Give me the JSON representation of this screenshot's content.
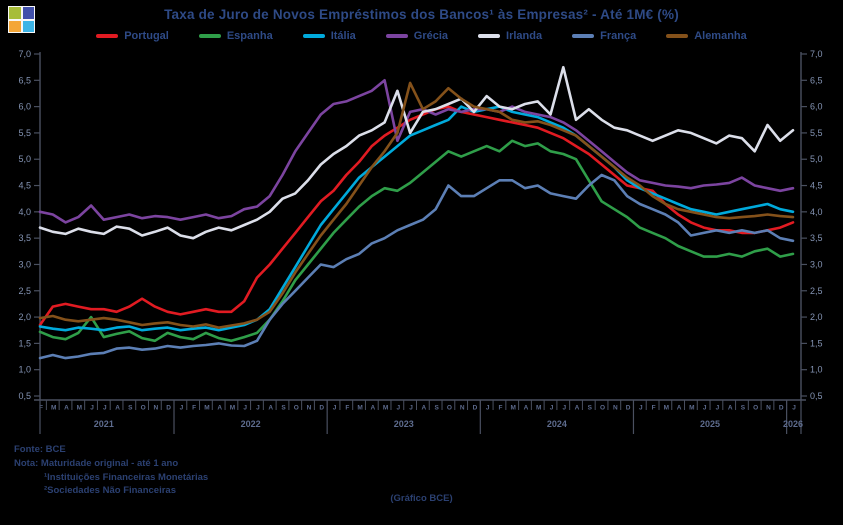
{
  "title": "Taxa de Juro de Novos Empréstimos dos Bancos¹ às Empresas² - Até 1M€ (%)",
  "logo": {
    "name": "bpstat-logo",
    "colors": {
      "top_left": "#a7bd38",
      "top_right": "#4150ab",
      "bottom_left": "#f4a637",
      "bottom_right": "#3cb4e6",
      "gap": "#f7f7f7"
    }
  },
  "footer": {
    "source": "Fonte: BCE",
    "note": "Nota: Maturidade original - até 1 ano",
    "footnote1": "¹Instituições Financeiras Monetárias",
    "footnote2": "²Sociedades Não Financeiras",
    "caption": "(Gráfico BCE)"
  },
  "style": {
    "background": "#000000",
    "axis_line_color": "#4a5060",
    "ytick_label_color": "#8494b4",
    "xtick_label_color": "#5d6b8d",
    "text_color": "#2e4a86"
  },
  "chart_data": {
    "type": "line",
    "title": "Taxa de Juro de Novos Empréstimos dos Bancos¹ às Empresas² - Até 1M€ (%)",
    "ylabel": "",
    "xlabel": "",
    "ylim": [
      0.5,
      7.0
    ],
    "ytick_step": 0.5,
    "y_tick_labels": [
      "0,5",
      "1,0",
      "1,5",
      "2,0",
      "2,5",
      "3,0",
      "3,5",
      "4,0",
      "4,5",
      "5,0",
      "5,5",
      "6,0",
      "6,5",
      "7,0"
    ],
    "dual_y_axis": true,
    "grid": false,
    "legend_position": "top",
    "x_start": "Fev 2021",
    "x_end": "Jan 2026",
    "x_month_labels": [
      "F",
      "M",
      "A",
      "M",
      "J",
      "J",
      "A",
      "S",
      "O",
      "N",
      "D",
      "J",
      "F",
      "M",
      "A",
      "M",
      "J",
      "J",
      "A",
      "S",
      "O",
      "N",
      "D",
      "J",
      "F",
      "M",
      "A",
      "M",
      "J",
      "J",
      "A",
      "S",
      "O",
      "N",
      "D",
      "J",
      "F",
      "M",
      "A",
      "M",
      "J",
      "J",
      "A",
      "S",
      "O",
      "N",
      "D",
      "J",
      "F",
      "M",
      "A",
      "M",
      "J",
      "J",
      "A",
      "S",
      "O",
      "N",
      "D",
      "J"
    ],
    "year_groups": [
      {
        "label": "2021",
        "start": 0,
        "end": 10
      },
      {
        "label": "2022",
        "start": 11,
        "end": 22
      },
      {
        "label": "2023",
        "start": 23,
        "end": 34
      },
      {
        "label": "2024",
        "start": 35,
        "end": 46
      },
      {
        "label": "2025",
        "start": 47,
        "end": 58
      },
      {
        "label": "2026",
        "start": 59,
        "end": 59
      }
    ],
    "series": [
      {
        "id": "portugal",
        "name": "Portugal",
        "color": "#e11b22",
        "values": [
          1.85,
          2.2,
          2.25,
          2.2,
          2.15,
          2.15,
          2.1,
          2.2,
          2.35,
          2.2,
          2.1,
          2.05,
          2.1,
          2.15,
          2.1,
          2.1,
          2.3,
          2.75,
          3.0,
          3.3,
          3.6,
          3.9,
          4.2,
          4.4,
          4.7,
          4.95,
          5.25,
          5.45,
          5.6,
          5.75,
          5.85,
          5.95,
          6.0,
          5.9,
          5.85,
          5.8,
          5.75,
          5.7,
          5.65,
          5.6,
          5.5,
          5.4,
          5.25,
          5.1,
          4.9,
          4.7,
          4.5,
          4.45,
          4.4,
          4.15,
          3.95,
          3.8,
          3.7,
          3.65,
          3.65,
          3.6,
          3.6,
          3.65,
          3.7,
          3.8
        ]
      },
      {
        "id": "espanha",
        "name": "Espanha",
        "color": "#2f9e49",
        "values": [
          1.72,
          1.62,
          1.58,
          1.7,
          2.0,
          1.62,
          1.68,
          1.73,
          1.6,
          1.55,
          1.7,
          1.62,
          1.58,
          1.7,
          1.6,
          1.55,
          1.62,
          1.7,
          1.95,
          2.3,
          2.7,
          3.0,
          3.3,
          3.6,
          3.85,
          4.1,
          4.3,
          4.45,
          4.4,
          4.55,
          4.75,
          4.95,
          5.15,
          5.05,
          5.15,
          5.25,
          5.15,
          5.35,
          5.25,
          5.3,
          5.15,
          5.1,
          5.0,
          4.6,
          4.2,
          4.05,
          3.9,
          3.7,
          3.6,
          3.5,
          3.35,
          3.25,
          3.15,
          3.15,
          3.2,
          3.15,
          3.25,
          3.3,
          3.15,
          3.2
        ]
      },
      {
        "id": "italia",
        "name": "Itália",
        "color": "#00aadc",
        "values": [
          1.82,
          1.78,
          1.75,
          1.8,
          1.78,
          1.75,
          1.8,
          1.82,
          1.75,
          1.78,
          1.8,
          1.75,
          1.78,
          1.8,
          1.75,
          1.8,
          1.85,
          1.95,
          2.15,
          2.55,
          2.95,
          3.35,
          3.75,
          4.05,
          4.35,
          4.65,
          4.85,
          5.05,
          5.25,
          5.45,
          5.55,
          5.65,
          5.75,
          6.0,
          5.9,
          5.95,
          6.0,
          5.9,
          5.85,
          5.8,
          5.7,
          5.6,
          5.45,
          5.25,
          5.05,
          4.85,
          4.6,
          4.45,
          4.35,
          4.25,
          4.15,
          4.05,
          4.0,
          3.95,
          4.0,
          4.05,
          4.1,
          4.15,
          4.05,
          4.0
        ]
      },
      {
        "id": "grecia",
        "name": "Grécia",
        "color": "#7c44a0",
        "values": [
          4.0,
          3.95,
          3.8,
          3.9,
          4.12,
          3.85,
          3.9,
          3.95,
          3.88,
          3.92,
          3.9,
          3.85,
          3.9,
          3.95,
          3.88,
          3.92,
          4.05,
          4.1,
          4.3,
          4.7,
          5.15,
          5.5,
          5.85,
          6.05,
          6.1,
          6.2,
          6.3,
          6.5,
          5.35,
          5.9,
          5.95,
          5.85,
          5.95,
          5.9,
          5.95,
          5.95,
          5.9,
          6.0,
          5.9,
          5.85,
          5.8,
          5.7,
          5.55,
          5.35,
          5.15,
          4.95,
          4.75,
          4.6,
          4.55,
          4.5,
          4.48,
          4.45,
          4.5,
          4.52,
          4.55,
          4.65,
          4.5,
          4.45,
          4.4,
          4.45
        ]
      },
      {
        "id": "irlanda",
        "name": "Irlanda",
        "color": "#dcdfea",
        "values": [
          3.7,
          3.62,
          3.58,
          3.68,
          3.62,
          3.58,
          3.72,
          3.68,
          3.55,
          3.62,
          3.7,
          3.55,
          3.5,
          3.62,
          3.7,
          3.65,
          3.75,
          3.85,
          4.0,
          4.25,
          4.35,
          4.6,
          4.9,
          5.1,
          5.25,
          5.45,
          5.55,
          5.7,
          6.3,
          5.5,
          5.9,
          5.95,
          6.05,
          6.15,
          5.9,
          6.2,
          6.0,
          5.95,
          6.05,
          6.1,
          5.85,
          6.75,
          5.75,
          5.95,
          5.75,
          5.6,
          5.55,
          5.45,
          5.35,
          5.45,
          5.55,
          5.5,
          5.4,
          5.3,
          5.45,
          5.4,
          5.15,
          5.65,
          5.35,
          5.55
        ]
      },
      {
        "id": "franca",
        "name": "França",
        "color": "#5c7fb5",
        "values": [
          1.22,
          1.28,
          1.22,
          1.25,
          1.3,
          1.32,
          1.4,
          1.42,
          1.38,
          1.4,
          1.45,
          1.42,
          1.45,
          1.47,
          1.5,
          1.46,
          1.45,
          1.55,
          1.95,
          2.25,
          2.5,
          2.75,
          3.0,
          2.95,
          3.1,
          3.2,
          3.4,
          3.5,
          3.65,
          3.75,
          3.85,
          4.05,
          4.5,
          4.3,
          4.3,
          4.45,
          4.6,
          4.6,
          4.45,
          4.5,
          4.35,
          4.3,
          4.25,
          4.5,
          4.7,
          4.6,
          4.3,
          4.15,
          4.05,
          3.95,
          3.8,
          3.55,
          3.6,
          3.65,
          3.6,
          3.65,
          3.6,
          3.65,
          3.5,
          3.45
        ]
      },
      {
        "id": "alemanha",
        "name": "Alemanha",
        "color": "#84511a",
        "values": [
          1.98,
          2.02,
          1.95,
          1.92,
          1.95,
          1.98,
          1.95,
          1.9,
          1.85,
          1.88,
          1.9,
          1.85,
          1.82,
          1.86,
          1.8,
          1.84,
          1.88,
          1.95,
          2.1,
          2.45,
          2.85,
          3.2,
          3.55,
          3.85,
          4.15,
          4.5,
          4.85,
          5.15,
          5.5,
          6.45,
          5.95,
          6.1,
          6.35,
          6.15,
          6.0,
          5.95,
          5.9,
          5.75,
          5.7,
          5.72,
          5.65,
          5.55,
          5.45,
          5.25,
          5.05,
          4.85,
          4.65,
          4.5,
          4.3,
          4.15,
          4.05,
          4.0,
          3.95,
          3.9,
          3.88,
          3.9,
          3.92,
          3.95,
          3.92,
          3.9
        ]
      }
    ]
  }
}
